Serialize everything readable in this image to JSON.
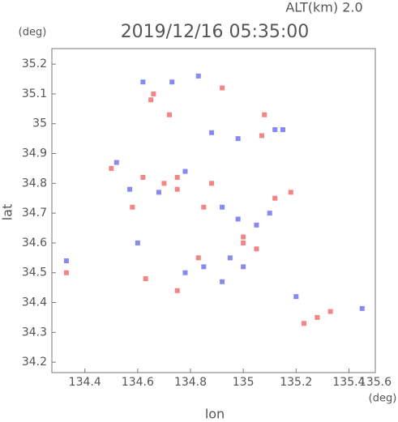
{
  "chart_data": {
    "type": "scatter",
    "title": "2019/12/16 05:35:00",
    "subtitle": "ALT(km) 2.0",
    "x_label": "lon",
    "y_label": "lat",
    "x_unit": "(deg)",
    "y_unit": "(deg)",
    "x_edge_label": "135.6",
    "xlim": [
      134.275,
      135.5
    ],
    "ylim": [
      34.165,
      35.252
    ],
    "xticks": [
      134.4,
      134.6,
      134.8,
      135.0,
      135.2,
      135.4
    ],
    "yticks": [
      34.2,
      34.3,
      34.4,
      34.5,
      34.6,
      34.7,
      34.8,
      34.9,
      35.0,
      35.1,
      35.2
    ],
    "series": [
      {
        "color": "#f07070",
        "x": [
          134.65,
          134.66,
          134.72,
          134.92,
          135.08,
          135.07,
          134.5,
          134.62,
          134.75,
          134.88,
          135.18,
          134.58,
          134.85,
          135.0,
          135.05,
          134.83,
          134.63,
          134.75,
          135.0,
          135.28,
          135.33,
          135.23,
          134.33,
          134.75,
          134.7,
          135.12
        ],
        "y": [
          35.08,
          35.1,
          35.03,
          35.12,
          35.03,
          34.96,
          34.85,
          34.82,
          34.78,
          34.8,
          34.77,
          34.72,
          34.72,
          34.62,
          34.58,
          34.55,
          34.48,
          34.44,
          34.6,
          34.35,
          34.37,
          34.33,
          34.5,
          34.82,
          34.8,
          34.75
        ]
      },
      {
        "color": "#7474f0",
        "x": [
          134.62,
          134.73,
          134.83,
          134.88,
          134.98,
          135.12,
          135.15,
          134.52,
          134.57,
          134.68,
          134.78,
          134.92,
          134.98,
          135.05,
          134.95,
          134.78,
          134.85,
          134.92,
          135.45,
          135.2,
          134.33,
          134.6,
          135.0,
          135.1
        ],
        "y": [
          35.14,
          35.14,
          35.16,
          34.97,
          34.95,
          34.98,
          34.98,
          34.87,
          34.78,
          34.77,
          34.84,
          34.72,
          34.68,
          34.66,
          34.55,
          34.5,
          34.52,
          34.47,
          34.38,
          34.42,
          34.54,
          34.6,
          34.52,
          34.7
        ]
      }
    ]
  }
}
